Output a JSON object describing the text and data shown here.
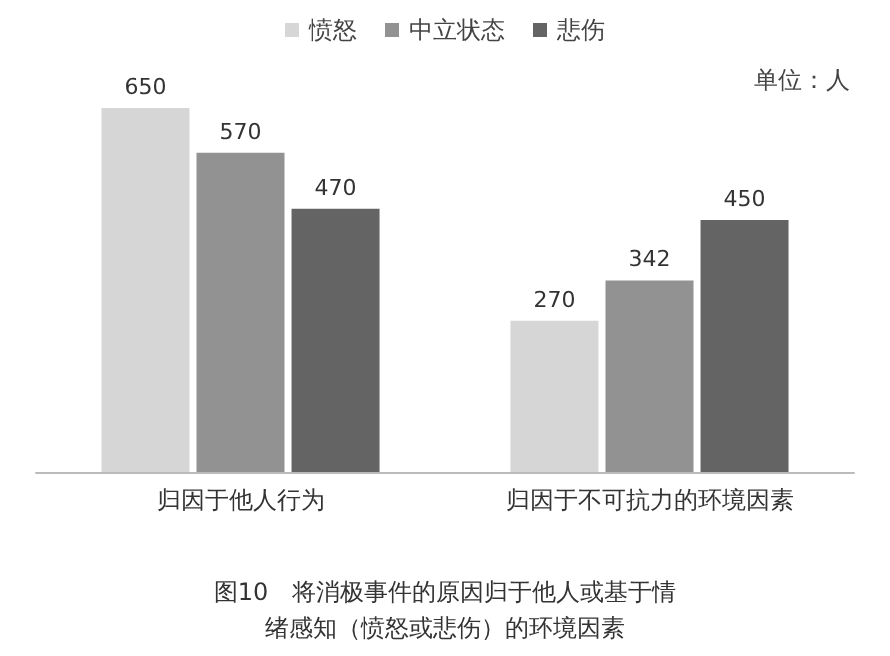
{
  "chart_data": {
    "type": "bar",
    "title": "图10　将消极事件的原因归于他人或基于情绪感知（愤怒或悲伤）的环境因素",
    "categories": [
      "归因于他人行为",
      "归因于不可抗力的环境因素"
    ],
    "series": [
      {
        "name": "愤怒",
        "color": "#d6d6d6",
        "values": [
          650,
          270
        ]
      },
      {
        "name": "中立状态",
        "color": "#929292",
        "values": [
          570,
          342
        ]
      },
      {
        "name": "悲伤",
        "color": "#646464",
        "values": [
          470,
          450
        ]
      }
    ],
    "data_labels": true,
    "legend": "top",
    "annotations": [
      "单位：人"
    ]
  }
}
